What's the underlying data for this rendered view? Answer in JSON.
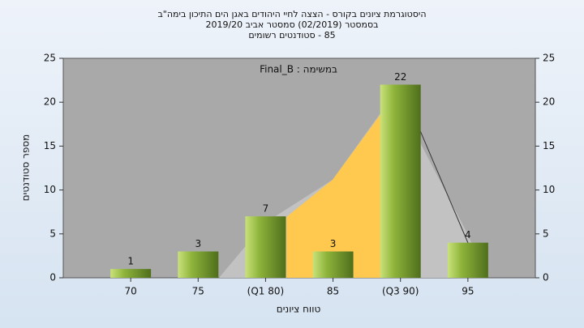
{
  "chart_data": {
    "type": "bar",
    "title": [
      "היסטוגרמת ציונים בקורס - הצצה לחיי היהודים באגן הים התיכון בימה\"ב",
      "בסמסטר  (02/2019)  סמסטר אביב 2019/20",
      "85 - סטודנטים רשומים"
    ],
    "annotation": "במשימה : Final_B",
    "x_label": "טווח ציונים",
    "y_label": "מספר סטודנטים",
    "categories": [
      "70",
      "75",
      "(Q1 80)",
      "85",
      "(Q3 90)",
      "95"
    ],
    "values": [
      1,
      3,
      7,
      3,
      22,
      4
    ],
    "color": "#8db33a",
    "ylim": [
      0,
      25
    ],
    "yticks": [
      0,
      5,
      10,
      15,
      20,
      25
    ]
  }
}
